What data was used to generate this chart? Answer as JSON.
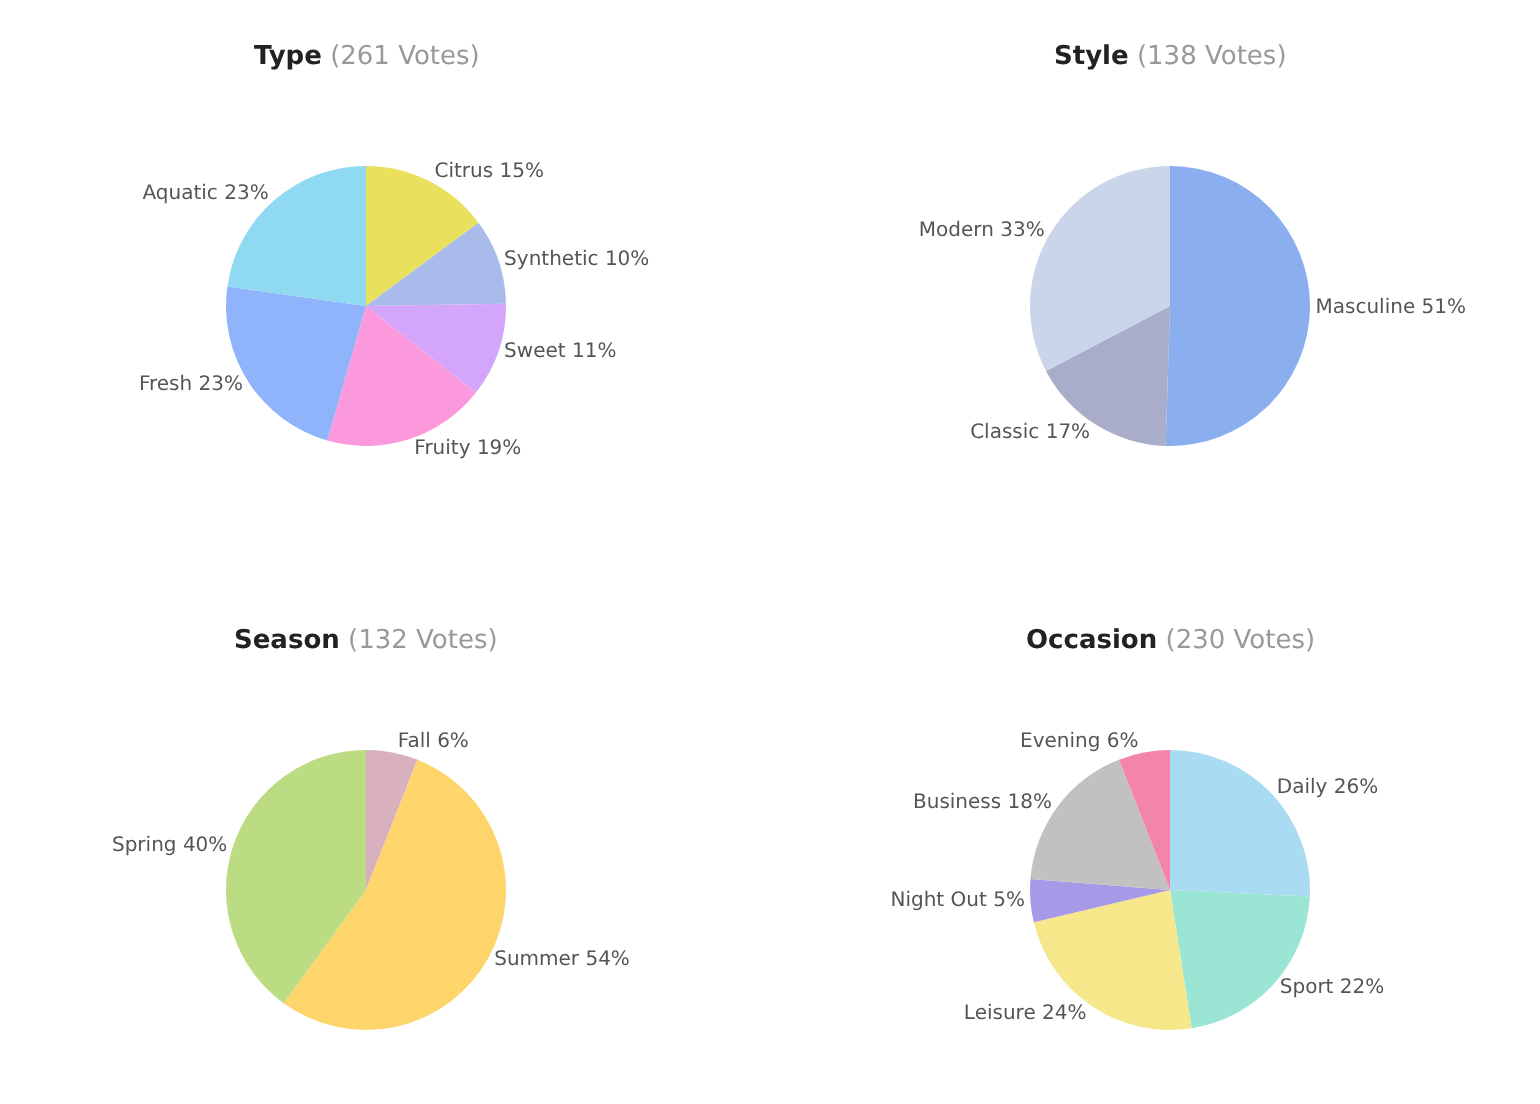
{
  "chart_data": [
    {
      "type": "pie",
      "title": "Type",
      "subtitle": "(261 Votes)",
      "categories": [
        "Citrus",
        "Synthetic",
        "Sweet",
        "Fruity",
        "Fresh",
        "Aquatic"
      ],
      "values": [
        15,
        10,
        11,
        19,
        23,
        23
      ],
      "colors": [
        "#e9e05e",
        "#a9bbeb",
        "#d3a6fb",
        "#fc98dc",
        "#90b4fc",
        "#8fd9f2"
      ],
      "value_labels": [
        "15%",
        "10%",
        "11%",
        "19%",
        "23%",
        "23%"
      ]
    },
    {
      "type": "pie",
      "title": "Style",
      "subtitle": "(138 Votes)",
      "categories": [
        "Masculine",
        "Classic",
        "Modern"
      ],
      "values": [
        51,
        17,
        33
      ],
      "colors": [
        "#8aaeee",
        "#a9adc9",
        "#cad5ea"
      ],
      "value_labels": [
        "51%",
        "17%",
        "33%"
      ]
    },
    {
      "type": "pie",
      "title": "Season",
      "subtitle": "(132 Votes)",
      "categories": [
        "Fall",
        "Summer",
        "Spring"
      ],
      "values": [
        6,
        54,
        40
      ],
      "colors": [
        "#d9b0be",
        "#fed56b",
        "#bcdc83"
      ],
      "value_labels": [
        "6%",
        "54%",
        "40%"
      ]
    },
    {
      "type": "pie",
      "title": "Occasion",
      "subtitle": "(230 Votes)",
      "categories": [
        "Daily",
        "Sport",
        "Leisure",
        "Night Out",
        "Business",
        "Evening"
      ],
      "values": [
        26,
        22,
        24,
        5,
        18,
        6
      ],
      "colors": [
        "#a9dcf2",
        "#9ae5d3",
        "#f6e88a",
        "#a599e8",
        "#c1c1c1",
        "#f385ad"
      ],
      "value_labels": [
        "26%",
        "22%",
        "24%",
        "5%",
        "18%",
        "6%"
      ]
    }
  ]
}
